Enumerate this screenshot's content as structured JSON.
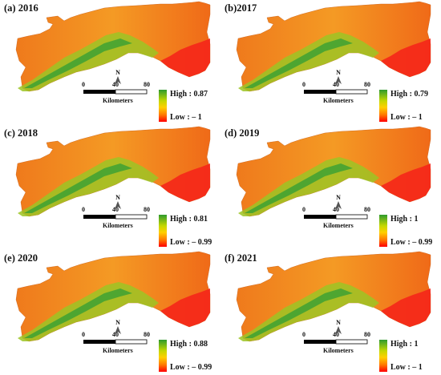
{
  "panels": [
    {
      "title": "(a) 2016",
      "high": "High : 0.87",
      "low": "Low : – 1"
    },
    {
      "title": "(b)2017",
      "high": "High : 0.79",
      "low": "Low : – 1"
    },
    {
      "title": "(c) 2018",
      "high": "High : 0.81",
      "low": "Low : – 0.99"
    },
    {
      "title": "(d) 2019",
      "high": "High : 1",
      "low": "Low : – 0.99"
    },
    {
      "title": "(e) 2020",
      "high": "High : 0.88",
      "low": "Low : – 0.99"
    },
    {
      "title": "(f) 2021",
      "high": "High : 1",
      "low": "Low : – 1"
    }
  ],
  "scale": {
    "t0": "0",
    "t1": "40",
    "t2": "80",
    "unit": "Kilometers"
  },
  "north": "N",
  "colors": {
    "high": "#2e9a2e",
    "mid": "#ffd000",
    "base": "#f2781e",
    "low": "#ff0000"
  }
}
